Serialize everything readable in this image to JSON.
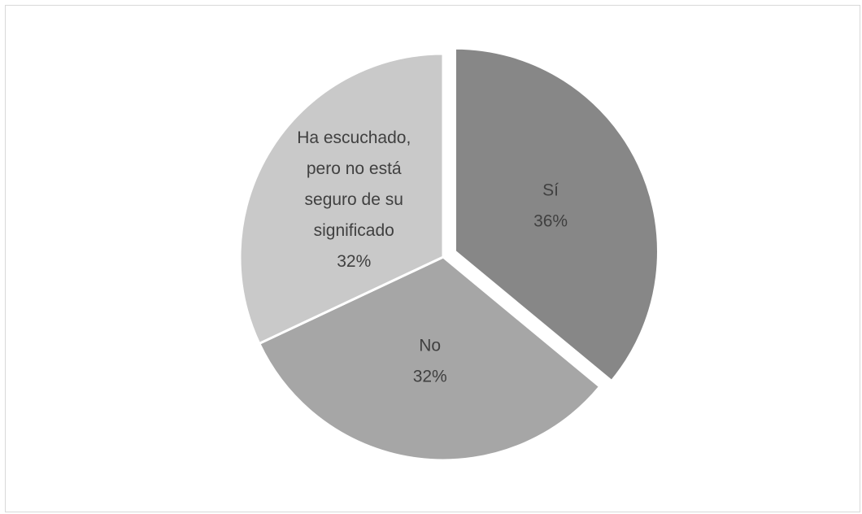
{
  "chart_data": {
    "type": "pie",
    "title": "",
    "slices": [
      {
        "label": "Sí",
        "value": 36,
        "value_label": "36%",
        "color": "#878787",
        "exploded": true
      },
      {
        "label": "No",
        "value": 32,
        "value_label": "32%",
        "color": "#a6a6a6",
        "exploded": false
      },
      {
        "label": "Ha escuchado, pero no está seguro de su significado",
        "value": 32,
        "value_label": "32%",
        "color": "#c9c9c9",
        "exploded": false
      }
    ],
    "label_lines": [
      [
        "Sí"
      ],
      [
        "No"
      ],
      [
        "Ha escuchado,",
        "pero no está",
        "seguro de su",
        "significado"
      ]
    ],
    "legend": "none",
    "slice_edge_color": "#ffffff"
  }
}
